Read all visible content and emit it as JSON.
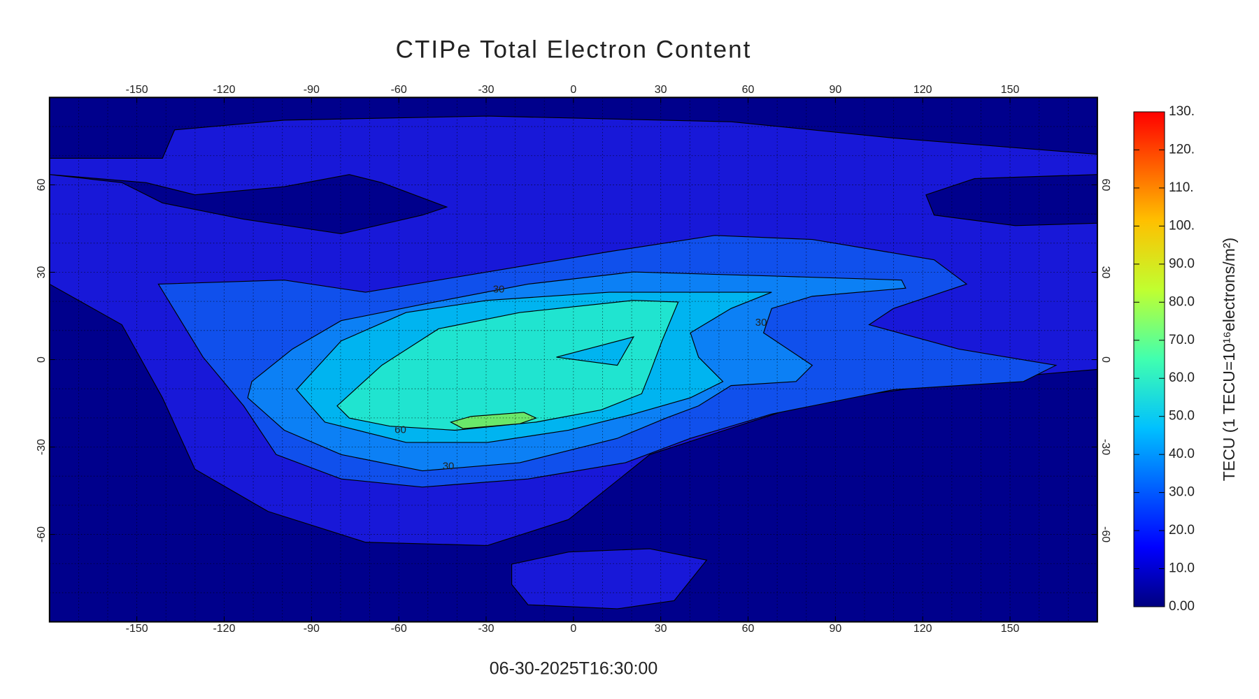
{
  "chart_data": {
    "type": "contour-map",
    "title": "CTIPe Total Electron Content",
    "timestamp": "06-30-2025T16:30:00",
    "xlim": [
      -180,
      180
    ],
    "xticks": [
      -150,
      -120,
      -90,
      -60,
      -30,
      0,
      30,
      60,
      90,
      120,
      150
    ],
    "ylim": [
      -90,
      90
    ],
    "yticks": [
      -60,
      -30,
      0,
      30,
      60
    ],
    "grid": true,
    "contour_labels": [
      30,
      60,
      30,
      30
    ],
    "colorbar": {
      "label": "TECU (1 TECU=10¹⁶electrons/m²)",
      "lim": [
        0,
        130
      ],
      "ticks": [
        {
          "value": 0,
          "label": "0.00"
        },
        {
          "value": 10,
          "label": "10.0"
        },
        {
          "value": 20,
          "label": "20.0"
        },
        {
          "value": 30,
          "label": "30.0"
        },
        {
          "value": 40,
          "label": "40.0"
        },
        {
          "value": 50,
          "label": "50.0"
        },
        {
          "value": 60,
          "label": "60.0"
        },
        {
          "value": 70,
          "label": "70.0"
        },
        {
          "value": 80,
          "label": "80.0"
        },
        {
          "value": 90,
          "label": "90.0"
        },
        {
          "value": 100,
          "label": "100."
        },
        {
          "value": 110,
          "label": "110."
        },
        {
          "value": 120,
          "label": "120."
        },
        {
          "value": 130,
          "label": "130."
        }
      ]
    }
  }
}
